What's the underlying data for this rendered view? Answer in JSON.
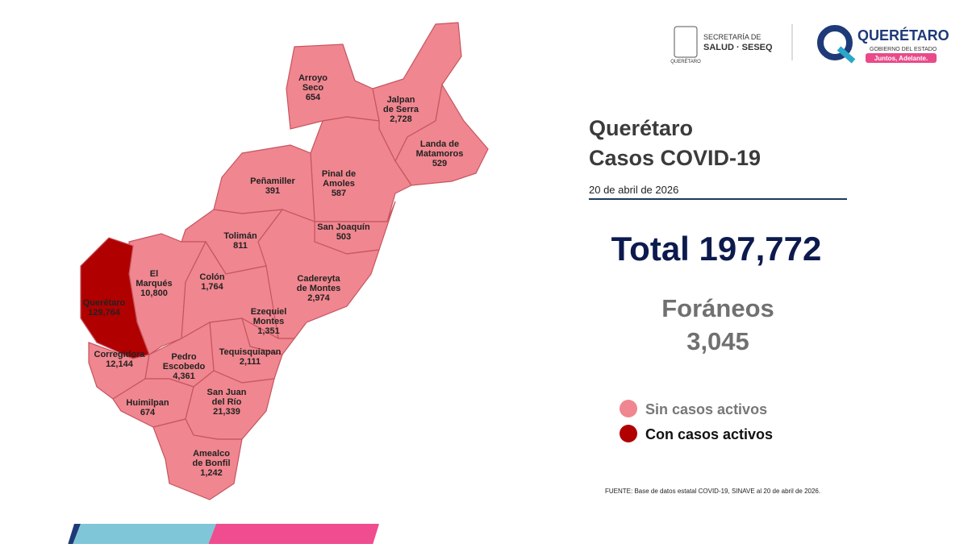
{
  "logos": {
    "secretaria_line1": "SECRETARÍA DE",
    "secretaria_line2": "SALUD · SESEQ",
    "state_small": "QUERÉTARO",
    "brand": "QUERÉTARO",
    "brand_sub": "GOBIERNO DEL ESTADO",
    "slogan": "Juntos, Adelante."
  },
  "title": [
    "Querétaro",
    "Casos COVID-19"
  ],
  "date": "20 de abril de 2026",
  "total": "Total 197,772",
  "foraneos": {
    "label": "Foráneos",
    "value": "3,045"
  },
  "legend": [
    {
      "label": "Sin casos activos",
      "color": "#f0868f"
    },
    {
      "label": "Con casos activos",
      "color": "#b00000"
    }
  ],
  "source": "FUENTE: Base de datos estatal COVID-19, SINAVE al 20 de abril de 2026.",
  "municipalities": [
    {
      "name": [
        "Arroyo",
        "Seco"
      ],
      "cases": "654"
    },
    {
      "name": [
        "Jalpan",
        "de Serra"
      ],
      "cases": "2,728"
    },
    {
      "name": [
        "Landa de",
        "Matamoros"
      ],
      "cases": "529"
    },
    {
      "name": [
        "Pinal de",
        "Amoles"
      ],
      "cases": "587"
    },
    {
      "name": [
        "Peñamiller"
      ],
      "cases": "391"
    },
    {
      "name": [
        "San Joaquín"
      ],
      "cases": "503"
    },
    {
      "name": [
        "Cadereyta",
        "de Montes"
      ],
      "cases": "2,974"
    },
    {
      "name": [
        "Tolimán"
      ],
      "cases": "811"
    },
    {
      "name": [
        "El",
        "Marqués"
      ],
      "cases": "10,800"
    },
    {
      "name": [
        "Querétaro"
      ],
      "cases": "129,764"
    },
    {
      "name": [
        "Colón"
      ],
      "cases": "1,764"
    },
    {
      "name": [
        "Ezequiel",
        "Montes"
      ],
      "cases": "1,351"
    },
    {
      "name": [
        "Tequisquiapan"
      ],
      "cases": "2,111"
    },
    {
      "name": [
        "Corregidora"
      ],
      "cases": "12,144"
    },
    {
      "name": [
        "Pedro",
        "Escobedo"
      ],
      "cases": "4,361"
    },
    {
      "name": [
        "Huimilpan"
      ],
      "cases": "674"
    },
    {
      "name": [
        "San Juan",
        "del Río"
      ],
      "cases": "21,339"
    },
    {
      "name": [
        "Amealco",
        "de Bonfil"
      ],
      "cases": "1,242"
    }
  ]
}
